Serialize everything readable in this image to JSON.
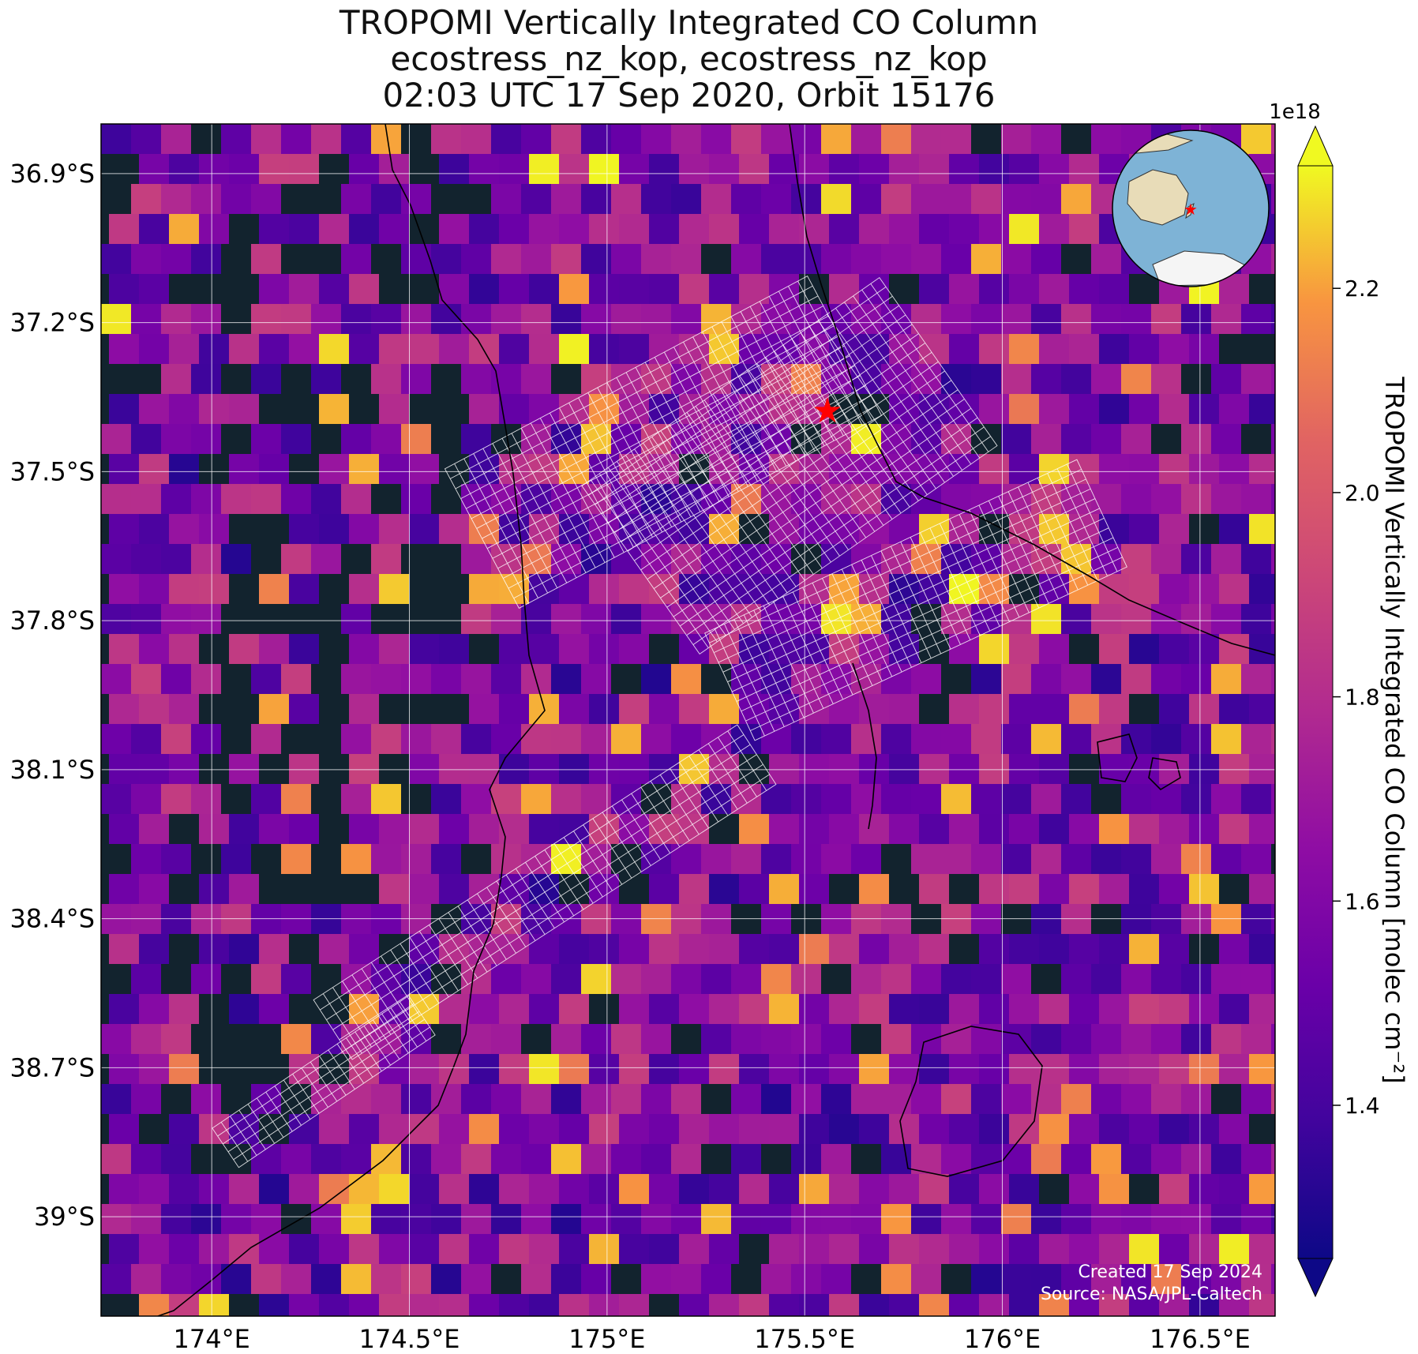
{
  "title": {
    "line1": "TROPOMI Vertically Integrated CO Column",
    "line2": "ecostress_nz_kop, ecostress_nz_kop",
    "line3": "02:03 UTC 17 Sep 2020, Orbit 15176"
  },
  "map": {
    "lon_range": [
      173.72,
      176.69
    ],
    "lat_range": [
      -39.2,
      -36.8
    ],
    "lon_ticks": [
      174.0,
      174.5,
      175.0,
      175.5,
      176.0,
      176.5
    ],
    "lon_tick_labels": [
      "174°E",
      "174.5°E",
      "175°E",
      "175.5°E",
      "176°E",
      "176.5°E"
    ],
    "lat_ticks": [
      -36.9,
      -37.2,
      -37.5,
      -37.8,
      -38.1,
      -38.4,
      -38.7,
      -39.0
    ],
    "lat_tick_labels": [
      "36.9°S",
      "37.2°S",
      "37.5°S",
      "37.8°S",
      "38.1°S",
      "38.4°S",
      "38.7°S",
      "39°S"
    ],
    "gridlines": true,
    "target_marker": {
      "lon": 175.55,
      "lat": -37.38,
      "color": "#ff0000"
    },
    "basemap": "satellite imagery (ocean, land)"
  },
  "colorbar": {
    "label": "TROPOMI Vertically Integrated CO Column [molec cm⁻²]",
    "multiplier": "1e18",
    "range": [
      1.25,
      2.32
    ],
    "ticks": [
      1.4,
      1.6,
      1.8,
      2.0,
      2.2
    ],
    "tick_labels": [
      "1.4",
      "1.6",
      "1.8",
      "2.0",
      "2.2"
    ],
    "colormap": "plasma",
    "extend": "both"
  },
  "inset": {
    "description": "globe",
    "marker_color": "#ff0000"
  },
  "credits": {
    "created": "Created 17 Sep 2024",
    "source": "Source: NASA/JPL-Caltech"
  },
  "colors": {
    "ocean": "#12232e",
    "gridline": "#ffffff",
    "footprint": "#ffffff",
    "coastline": "#000000"
  }
}
